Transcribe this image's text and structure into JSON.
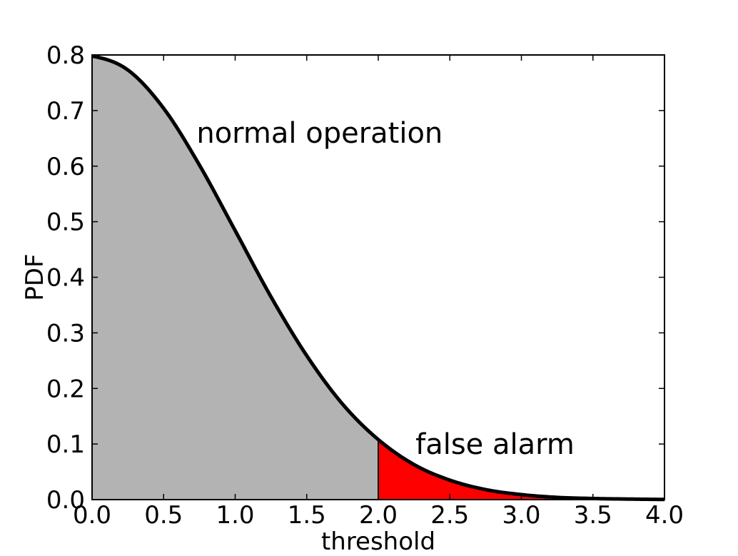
{
  "chart_data": {
    "type": "area",
    "title": "",
    "xlabel": "threshold",
    "ylabel": "PDF",
    "xlim": [
      0.0,
      4.0
    ],
    "ylim": [
      0.0,
      0.8
    ],
    "grid": false,
    "x_ticks": [
      "0.0",
      "0.5",
      "1.0",
      "1.5",
      "2.0",
      "2.5",
      "3.0",
      "3.5",
      "4.0"
    ],
    "y_ticks": [
      "0.0",
      "0.1",
      "0.2",
      "0.3",
      "0.4",
      "0.5",
      "0.6",
      "0.7",
      "0.8"
    ],
    "threshold": 2.0,
    "x": [
      0.0,
      0.25,
      0.5,
      0.75,
      1.0,
      1.25,
      1.5,
      1.75,
      2.0,
      2.25,
      2.5,
      2.75,
      3.0,
      3.25,
      3.5,
      3.75,
      4.0
    ],
    "y": [
      0.798,
      0.773,
      0.704,
      0.602,
      0.484,
      0.365,
      0.259,
      0.172,
      0.108,
      0.063,
      0.035,
      0.018,
      0.009,
      0.004,
      0.002,
      0.001,
      0.0003
    ],
    "regions": [
      {
        "label": "normal operation",
        "x_from": 0.0,
        "x_to": 2.0,
        "color": "#b3b3b3",
        "label_x": 0.73,
        "label_y": 0.66
      },
      {
        "label": "false alarm",
        "x_from": 2.0,
        "x_to": 4.0,
        "color": "#ff0000",
        "label_x": 2.26,
        "label_y": 0.1
      }
    ],
    "line_color": "#000000"
  }
}
